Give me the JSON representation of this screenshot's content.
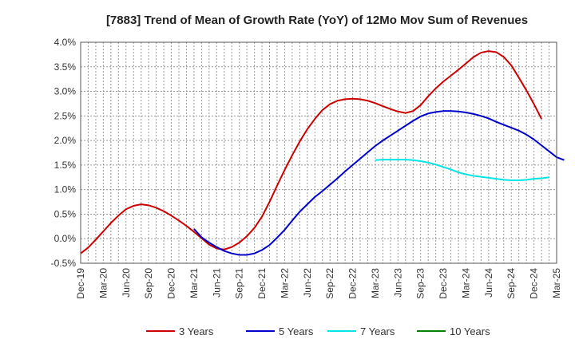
{
  "chart_data": {
    "type": "line",
    "title": "[7883]  Trend of Mean of Growth Rate (YoY) of 12Mo Mov Sum of Revenues",
    "xlabel": "",
    "ylabel": "",
    "ylim": [
      -0.5,
      4.0
    ],
    "grid": true,
    "legend_position": "bottom",
    "x_start": "2019-12",
    "x_end": "2025-03",
    "x_tick_labels": [
      "Dec-19",
      "Mar-20",
      "Jun-20",
      "Sep-20",
      "Dec-20",
      "Mar-21",
      "Jun-21",
      "Sep-21",
      "Dec-21",
      "Mar-22",
      "Jun-22",
      "Sep-22",
      "Dec-22",
      "Mar-23",
      "Jun-23",
      "Sep-23",
      "Dec-23",
      "Mar-24",
      "Jun-24",
      "Sep-24",
      "Dec-24",
      "Mar-25"
    ],
    "y_ticks": [
      -0.5,
      0.0,
      0.5,
      1.0,
      1.5,
      2.0,
      2.5,
      3.0,
      3.5,
      4.0
    ],
    "y_tick_labels": [
      "-0.5%",
      "0.0%",
      "0.5%",
      "1.0%",
      "1.5%",
      "2.0%",
      "2.5%",
      "3.0%",
      "3.5%",
      "4.0%"
    ],
    "series": [
      {
        "name": "3 Years",
        "color": "#cc0000",
        "start_month_index": 0,
        "values": [
          -0.3,
          -0.18,
          -0.02,
          0.15,
          0.32,
          0.47,
          0.6,
          0.67,
          0.7,
          0.68,
          0.63,
          0.56,
          0.47,
          0.37,
          0.26,
          0.14,
          0.01,
          -0.12,
          -0.2,
          -0.22,
          -0.17,
          -0.08,
          0.05,
          0.22,
          0.45,
          0.75,
          1.08,
          1.4,
          1.7,
          1.98,
          2.23,
          2.44,
          2.62,
          2.74,
          2.81,
          2.84,
          2.85,
          2.84,
          2.81,
          2.76,
          2.7,
          2.64,
          2.59,
          2.56,
          2.6,
          2.72,
          2.9,
          3.06,
          3.2,
          3.32,
          3.44,
          3.57,
          3.7,
          3.79,
          3.82,
          3.8,
          3.7,
          3.53,
          3.28,
          3.02,
          2.74,
          2.44
        ]
      },
      {
        "name": "5 Years",
        "color": "#0000cc",
        "start_month_index": 15,
        "values": [
          0.2,
          0.03,
          -0.08,
          -0.17,
          -0.25,
          -0.3,
          -0.33,
          -0.33,
          -0.3,
          -0.23,
          -0.13,
          0.02,
          0.18,
          0.37,
          0.55,
          0.7,
          0.85,
          0.97,
          1.1,
          1.23,
          1.37,
          1.5,
          1.63,
          1.76,
          1.89,
          2.0,
          2.1,
          2.2,
          2.3,
          2.4,
          2.49,
          2.55,
          2.58,
          2.6,
          2.6,
          2.59,
          2.57,
          2.54,
          2.5,
          2.45,
          2.38,
          2.32,
          2.26,
          2.2,
          2.12,
          2.02,
          1.9,
          1.78,
          1.66,
          1.6
        ]
      },
      {
        "name": "7 Years",
        "color": "#00e5e5",
        "start_month_index": 39,
        "values": [
          1.6,
          1.61,
          1.61,
          1.61,
          1.61,
          1.6,
          1.58,
          1.55,
          1.51,
          1.46,
          1.41,
          1.35,
          1.31,
          1.28,
          1.26,
          1.24,
          1.22,
          1.2,
          1.19,
          1.19,
          1.2,
          1.22,
          1.23,
          1.25
        ]
      },
      {
        "name": "10 Years",
        "color": "#008000",
        "start_month_index": 0,
        "values": []
      }
    ]
  }
}
